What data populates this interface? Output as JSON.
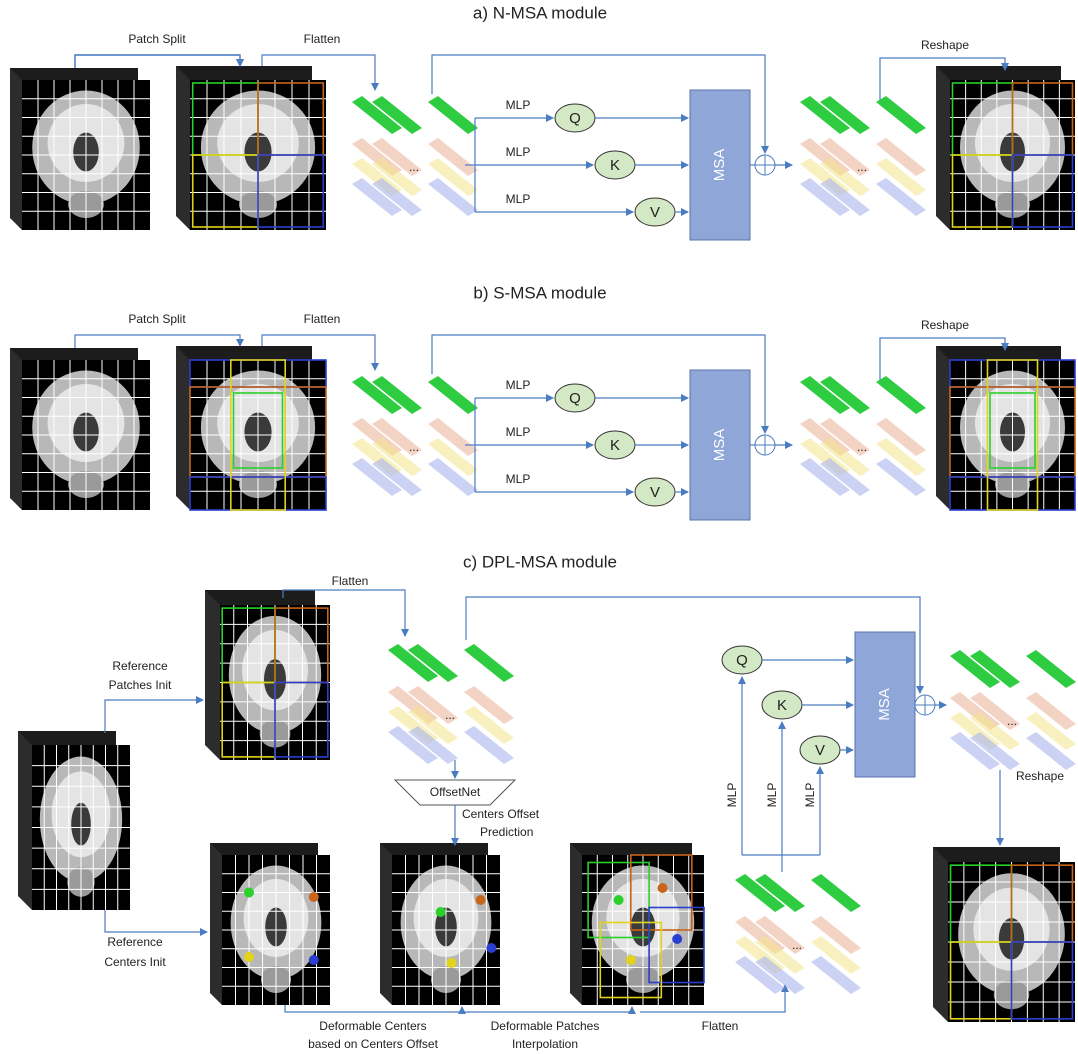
{
  "sections": [
    {
      "title": "a)  N-MSA module",
      "patch_split": "Patch Split",
      "flatten": "Flatten",
      "mlp": [
        "MLP",
        "MLP",
        "MLP"
      ],
      "q": "Q",
      "k": "K",
      "v": "V",
      "msa": "MSA",
      "reshape": "Reshape",
      "ellipsis": [
        "...",
        "..."
      ]
    },
    {
      "title": "b)  S-MSA module",
      "patch_split": "Patch Split",
      "flatten": "Flatten",
      "mlp": [
        "MLP",
        "MLP",
        "MLP"
      ],
      "q": "Q",
      "k": "K",
      "v": "V",
      "msa": "MSA",
      "reshape": "Reshape",
      "ellipsis": [
        "...",
        "..."
      ]
    },
    {
      "title": "c)  DPL-MSA module",
      "flatten": [
        "Flatten",
        "Flatten"
      ],
      "reference_patches_init": [
        "Reference",
        "Patches Init"
      ],
      "reference_centers_init": [
        "Reference",
        "Centers Init"
      ],
      "offsetnet": "OffsetNet",
      "centers_offset_prediction": [
        "Centers Offset",
        "Prediction"
      ],
      "q": "Q",
      "k": "K",
      "v": "V",
      "msa": "MSA",
      "mlp": [
        "MLP",
        "MLP",
        "MLP"
      ],
      "reshape": "Reshape",
      "ellipsis": [
        "...",
        "..."
      ],
      "deformable_centers": [
        "Deformable Centers",
        "based on Centers Offset"
      ],
      "deformable_patches": [
        "Deformable Patches",
        "Interpolation"
      ]
    }
  ]
}
